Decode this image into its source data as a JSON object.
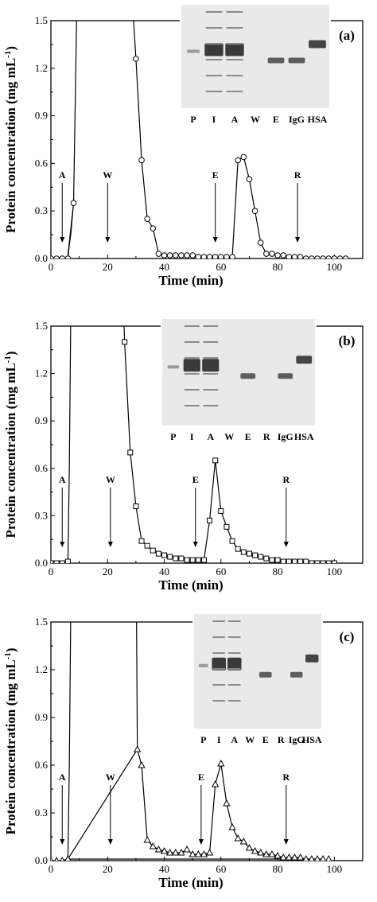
{
  "chart_data": [
    {
      "type": "line",
      "panel_label": "(a)",
      "marker": "circle",
      "xlabel": "Time (min)",
      "ylabel": "Protein concentration (mg mL",
      "ylabel_sup": "-1",
      "ylabel_close": ")",
      "xlim": [
        0,
        110
      ],
      "ylim": [
        0,
        1.5
      ],
      "xticks": [
        "0",
        "20",
        "40",
        "60",
        "80",
        "100"
      ],
      "xtick_values": [
        0,
        20,
        40,
        60,
        80,
        100
      ],
      "yticks": [
        "0.0",
        "0.3",
        "0.6",
        "0.9",
        "1.2",
        "1.5"
      ],
      "ytick_values": [
        0,
        0.3,
        0.6,
        0.9,
        1.2,
        1.5
      ],
      "gel_lanes": [
        "P",
        "I",
        "A",
        "W",
        "E",
        "IgG",
        "HSA"
      ],
      "annotations": [
        {
          "label": "A",
          "x": 4
        },
        {
          "label": "W",
          "x": 20
        },
        {
          "label": "E",
          "x": 58
        },
        {
          "label": "R",
          "x": 87
        }
      ],
      "line_only": [
        [
          6,
          0.02
        ],
        [
          7,
          0.15
        ],
        [
          8,
          0.35
        ],
        [
          8.6,
          1.0
        ],
        [
          9.1,
          1.55
        ]
      ],
      "line_only_2": [
        [
          29,
          1.55
        ],
        [
          30,
          1.26
        ]
      ],
      "series": [
        {
          "name": "",
          "x": [
            0,
            2,
            4,
            6,
            8,
            30,
            32,
            34,
            36,
            38,
            40,
            42,
            44,
            46,
            48,
            50,
            52,
            54,
            56,
            58,
            60,
            62,
            64,
            66,
            68,
            70,
            72,
            74,
            76,
            78,
            80,
            82,
            84,
            86,
            88,
            90,
            92,
            94,
            96,
            98,
            100,
            102,
            104
          ],
          "y": [
            0.0,
            0.0,
            0.0,
            0.0,
            0.35,
            1.26,
            0.62,
            0.25,
            0.19,
            0.03,
            0.02,
            0.02,
            0.02,
            0.02,
            0.02,
            0.02,
            0.01,
            0.01,
            0.01,
            0.01,
            0.01,
            0.01,
            0.01,
            0.62,
            0.64,
            0.5,
            0.3,
            0.1,
            0.03,
            0.03,
            0.02,
            0.02,
            0.01,
            0.01,
            0.01,
            0.0,
            0.0,
            0.0,
            0.0,
            0.0,
            0.0,
            0.0,
            0.0
          ]
        }
      ]
    },
    {
      "type": "line",
      "panel_label": "(b)",
      "marker": "square",
      "xlabel": "Time (min)",
      "ylabel": "Protein concentration (mg mL",
      "ylabel_sup": "-1",
      "ylabel_close": ")",
      "xlim": [
        0,
        110
      ],
      "ylim": [
        0,
        1.5
      ],
      "xticks": [
        "0",
        "20",
        "40",
        "60",
        "80",
        "100"
      ],
      "xtick_values": [
        0,
        20,
        40,
        60,
        80,
        100
      ],
      "yticks": [
        "0.0",
        "0.3",
        "0.6",
        "0.9",
        "1.2",
        "1.5"
      ],
      "ytick_values": [
        0,
        0.3,
        0.6,
        0.9,
        1.2,
        1.5
      ],
      "gel_lanes": [
        "P",
        "I",
        "A",
        "W",
        "E",
        "R",
        "IgG",
        "HSA"
      ],
      "annotations": [
        {
          "label": "A",
          "x": 4
        },
        {
          "label": "W",
          "x": 21
        },
        {
          "label": "E",
          "x": 51
        },
        {
          "label": "R",
          "x": 83
        }
      ],
      "line_only": [
        [
          6,
          0.01
        ],
        [
          6.5,
          0.6
        ],
        [
          7,
          1.55
        ]
      ],
      "line_only_2": [
        [
          25.7,
          1.55
        ],
        [
          26,
          1.4
        ]
      ],
      "series": [
        {
          "name": "",
          "x": [
            0,
            2,
            4,
            6,
            26,
            28,
            30,
            32,
            34,
            36,
            38,
            40,
            42,
            44,
            46,
            48,
            50,
            52,
            54,
            56,
            58,
            60,
            62,
            64,
            66,
            68,
            70,
            72,
            74,
            76,
            78,
            80,
            82,
            84,
            86,
            88,
            90,
            92,
            94,
            96,
            98,
            100
          ],
          "y": [
            0.0,
            0.0,
            0.0,
            0.01,
            1.4,
            0.7,
            0.36,
            0.14,
            0.11,
            0.08,
            0.06,
            0.05,
            0.04,
            0.03,
            0.03,
            0.02,
            0.02,
            0.02,
            0.02,
            0.27,
            0.65,
            0.33,
            0.23,
            0.14,
            0.09,
            0.07,
            0.06,
            0.05,
            0.04,
            0.03,
            0.02,
            0.02,
            0.01,
            0.01,
            0.01,
            0.01,
            0.01,
            0.0,
            0.0,
            0.0,
            0.0,
            0.0
          ]
        }
      ]
    },
    {
      "type": "line",
      "panel_label": "(c)",
      "marker": "triangle",
      "xlabel": "Time (min)",
      "ylabel": "Protein concentration (mg mL",
      "ylabel_sup": "-1",
      "ylabel_close": ")",
      "xlim": [
        0,
        110
      ],
      "ylim": [
        0,
        1.5
      ],
      "xticks": [
        "0",
        "20",
        "40",
        "60",
        "80",
        "100"
      ],
      "xtick_values": [
        0,
        20,
        40,
        60,
        80,
        100
      ],
      "yticks": [
        "0.0",
        "0.3",
        "0.6",
        "0.9",
        "1.2",
        "1.5"
      ],
      "ytick_values": [
        0,
        0.3,
        0.6,
        0.9,
        1.2,
        1.5
      ],
      "gel_lanes": [
        "P",
        "I",
        "A",
        "W",
        "E",
        "R",
        "IgG",
        "HSA"
      ],
      "annotations": [
        {
          "label": "A",
          "x": 4
        },
        {
          "label": "W",
          "x": 21
        },
        {
          "label": "E",
          "x": 53
        },
        {
          "label": "R",
          "x": 83
        }
      ],
      "line_only": [
        [
          6,
          0.01
        ],
        [
          6.5,
          0.6
        ],
        [
          7,
          1.55
        ]
      ],
      "line_only_2": [
        [
          30.2,
          1.55
        ],
        [
          30.5,
          0.7
        ]
      ],
      "series": [
        {
          "name": "",
          "x": [
            0,
            2,
            4,
            6,
            30.5,
            32,
            34,
            36,
            38,
            40,
            42,
            44,
            46,
            48,
            50,
            52,
            54,
            56,
            58,
            60,
            62,
            64,
            66,
            68,
            70,
            72,
            74,
            76,
            78,
            80,
            82,
            84,
            86,
            88,
            90,
            92,
            94,
            96,
            98
          ],
          "y": [
            0.0,
            0.0,
            0.0,
            0.01,
            0.7,
            0.6,
            0.13,
            0.09,
            0.07,
            0.06,
            0.05,
            0.05,
            0.05,
            0.07,
            0.04,
            0.04,
            0.04,
            0.05,
            0.48,
            0.61,
            0.36,
            0.21,
            0.14,
            0.12,
            0.08,
            0.06,
            0.05,
            0.04,
            0.04,
            0.03,
            0.02,
            0.02,
            0.02,
            0.02,
            0.01,
            0.01,
            0.01,
            0.01,
            0.01
          ]
        }
      ]
    }
  ]
}
